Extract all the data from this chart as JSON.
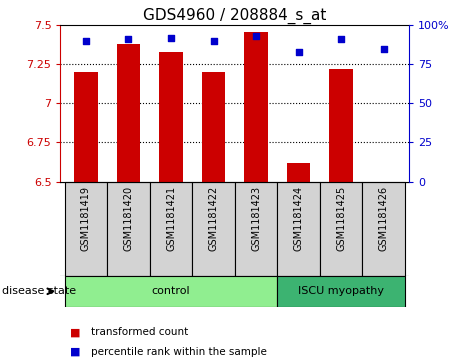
{
  "title": "GDS4960 / 208884_s_at",
  "samples": [
    "GSM1181419",
    "GSM1181420",
    "GSM1181421",
    "GSM1181422",
    "GSM1181423",
    "GSM1181424",
    "GSM1181425",
    "GSM1181426"
  ],
  "red_values": [
    7.2,
    7.38,
    7.33,
    7.2,
    7.46,
    6.62,
    7.22,
    6.5
  ],
  "blue_values": [
    90,
    91,
    92,
    90,
    93,
    83,
    91,
    85
  ],
  "ylim_left": [
    6.5,
    7.5
  ],
  "ylim_right": [
    0,
    100
  ],
  "yticks_left": [
    6.5,
    6.75,
    7.0,
    7.25,
    7.5
  ],
  "yticks_right": [
    0,
    25,
    50,
    75,
    100
  ],
  "ytick_labels_left": [
    "6.5",
    "6.75",
    "7",
    "7.25",
    "7.5"
  ],
  "ytick_labels_right": [
    "0",
    "25",
    "50",
    "75",
    "100%"
  ],
  "groups": [
    {
      "label": "control",
      "indices": [
        0,
        1,
        2,
        3,
        4
      ],
      "color": "#90ee90"
    },
    {
      "label": "ISCU myopathy",
      "indices": [
        5,
        6,
        7
      ],
      "color": "#3cb371"
    }
  ],
  "bar_color": "#cc0000",
  "dot_color": "#0000cc",
  "grid_color": "#000000",
  "sample_bg_color": "#d3d3d3",
  "sample_border_color": "#000000",
  "left_axis_color": "#cc0000",
  "right_axis_color": "#0000cc",
  "disease_state_label": "disease state",
  "legend_items": [
    {
      "label": "transformed count",
      "color": "#cc0000"
    },
    {
      "label": "percentile rank within the sample",
      "color": "#0000cc"
    }
  ],
  "bar_width": 0.55,
  "base_value": 6.5,
  "dot_size": 25,
  "title_fontsize": 11,
  "tick_fontsize": 8,
  "sample_fontsize": 7,
  "legend_fontsize": 7.5,
  "group_fontsize": 8,
  "disease_label_fontsize": 8
}
